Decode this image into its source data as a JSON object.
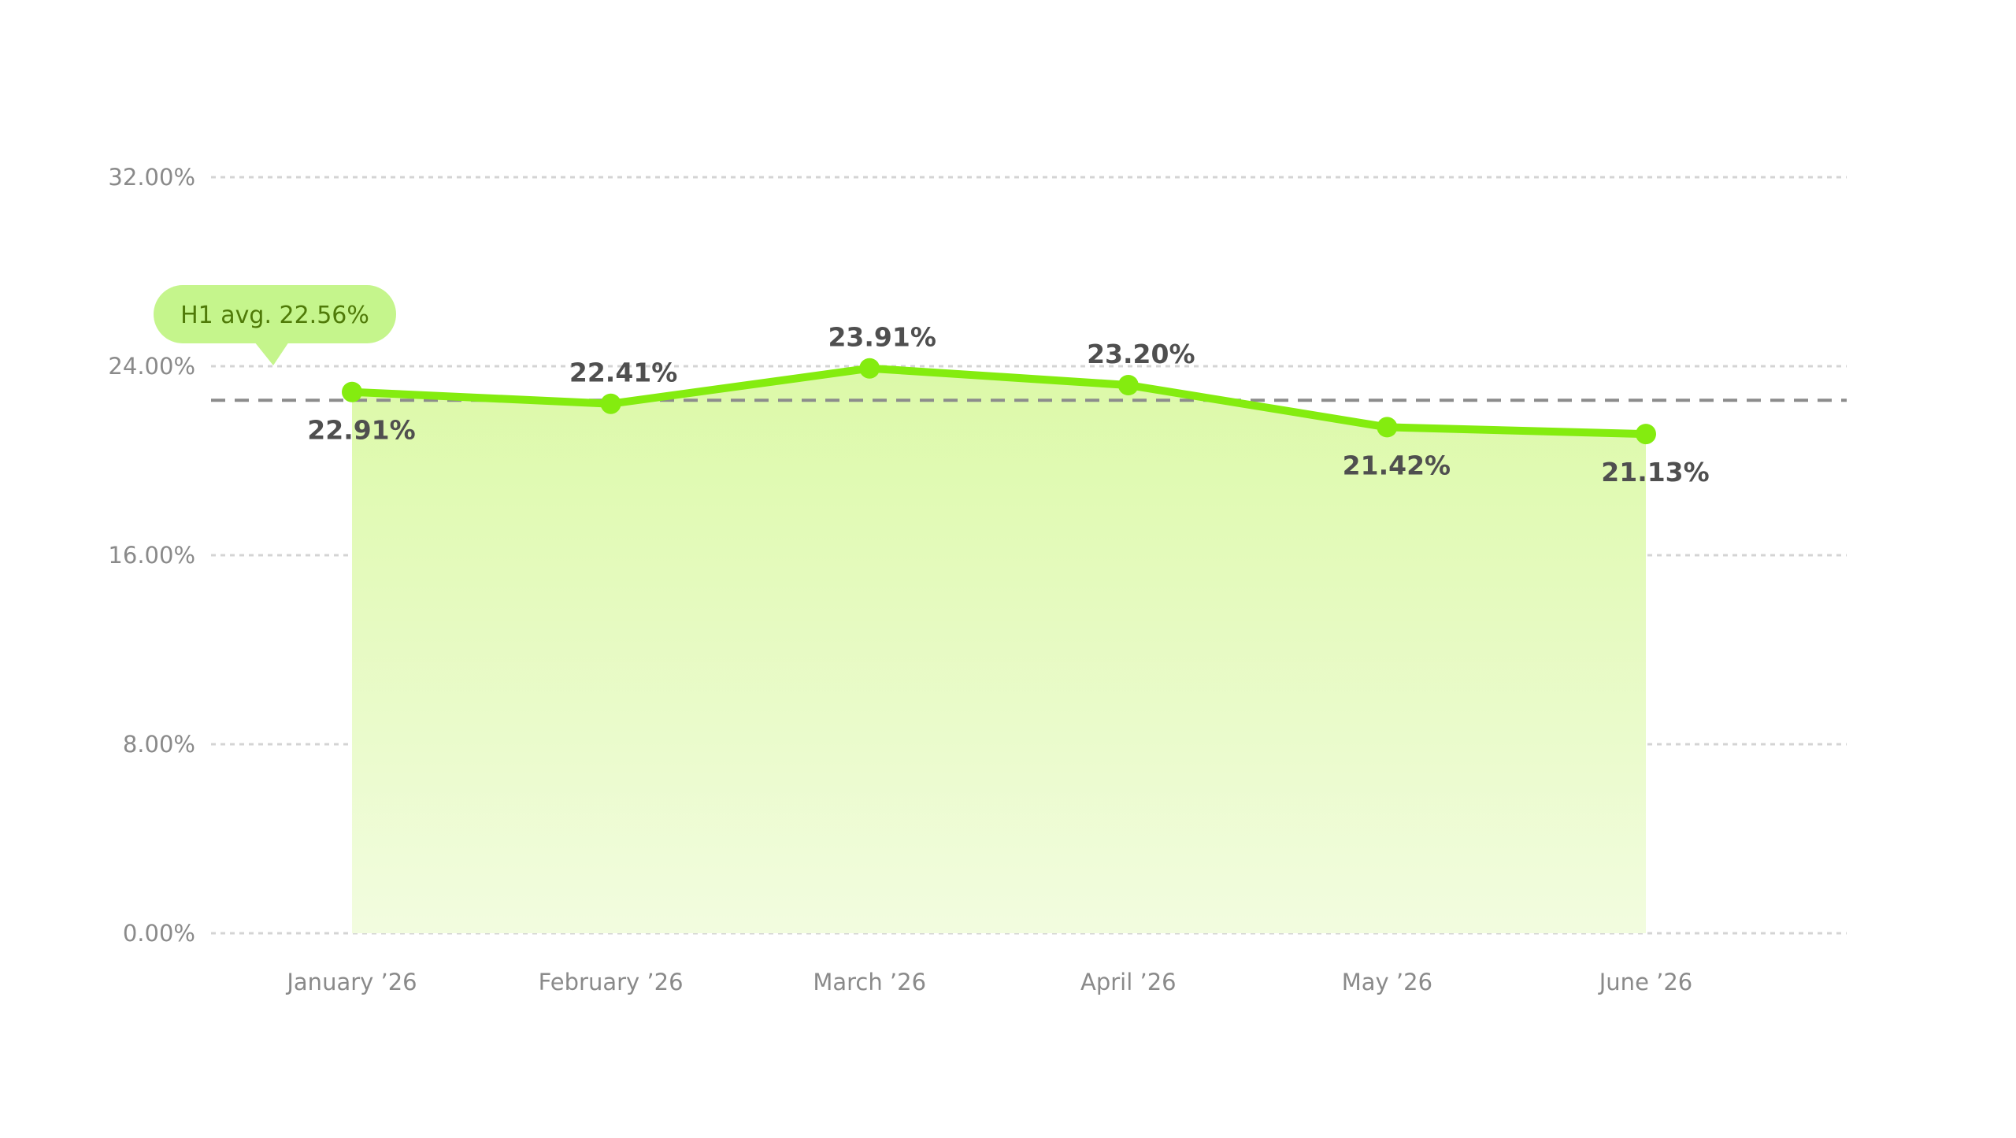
{
  "chart_data": {
    "type": "area",
    "title": "",
    "xlabel": "",
    "ylabel": "",
    "categories": [
      "January ’26",
      "February ’26",
      "March ’26",
      "April ’26",
      "May ’26",
      "June ’26"
    ],
    "values": [
      22.91,
      22.41,
      23.91,
      23.2,
      21.42,
      21.13
    ],
    "data_labels": [
      "22.91%",
      "22.41%",
      "23.91%",
      "23.20%",
      "21.42%",
      "21.13%"
    ],
    "ylim": [
      0,
      32
    ],
    "y_ticks": [
      0,
      8,
      16,
      24,
      32
    ],
    "y_tick_labels": [
      "0.00%",
      "8.00%",
      "16.00%",
      "24.00%",
      "32.00%"
    ],
    "grid": true,
    "reference_line": {
      "value": 22.56,
      "label": "H1 avg. 22.56%"
    },
    "colors": {
      "line": "#84ec0f",
      "area_top": "#dcf9a8",
      "area_bottom": "#f2fcdf",
      "badge": "#c5f58c",
      "badge_text": "#4f7a08",
      "grid": "#d4d4d4",
      "reference_line": "#8c8c8c"
    }
  }
}
